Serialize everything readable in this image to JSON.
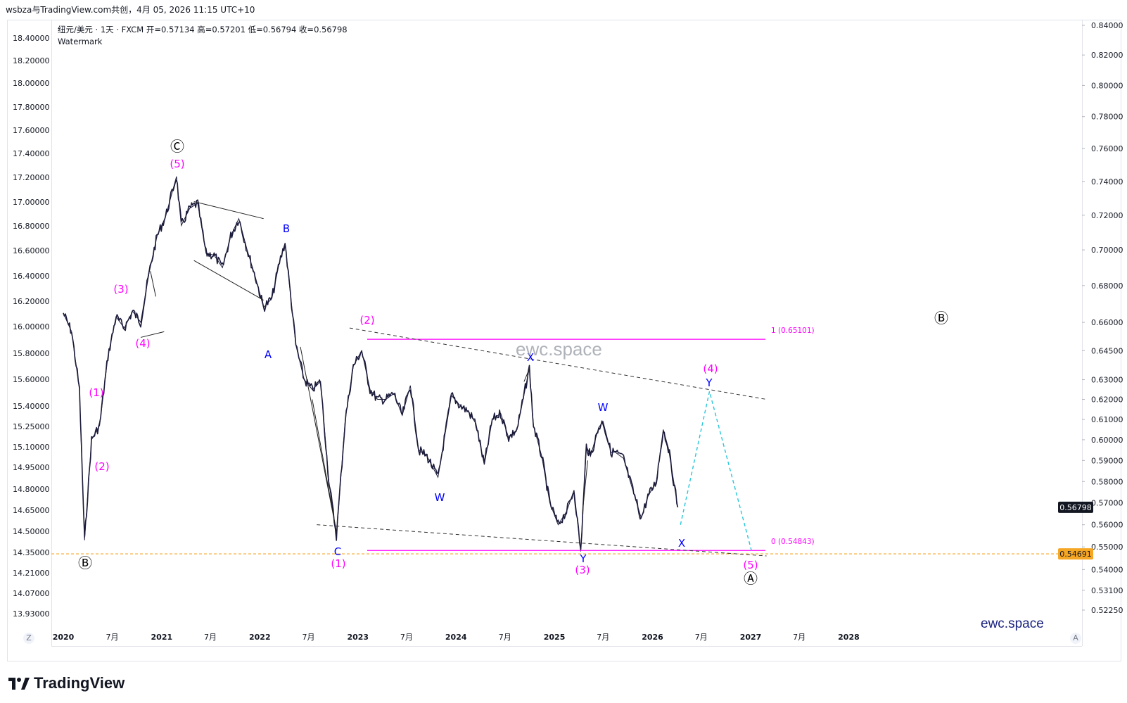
{
  "topbar": {
    "text": "wsbza与TradingView.com共创，4月 05, 2026 11:15 UTC+10"
  },
  "header": {
    "line1": "纽元/美元 · 1天 · FXCM  开=0.57134  高=0.57201  低=0.56794  收=0.56798",
    "line2": "Watermark"
  },
  "watermark": "ewc.space",
  "brand": "ewc.space",
  "logo_text": "TradingView",
  "axis_corner_left": "Z",
  "axis_corner_right": "A",
  "price_labels": {
    "last": "0.56798",
    "level": "0.54691"
  },
  "colors": {
    "candle": "#1a1a3a",
    "magenta": "#ff00ff",
    "blue": "#0000ff",
    "cyan": "#26c6da",
    "orange": "#f5a623",
    "black": "#000000"
  },
  "chart_data": {
    "type": "line",
    "x_tick_labels": [
      "2020",
      "7月",
      "2021",
      "7月",
      "2022",
      "7月",
      "2023",
      "7月",
      "2024",
      "7月",
      "2025",
      "7月",
      "2026",
      "7月",
      "2027",
      "7月",
      "2028"
    ],
    "left_axis_ticks": [
      "18.40000",
      "18.20000",
      "18.00000",
      "17.80000",
      "17.60000",
      "17.40000",
      "17.20000",
      "17.00000",
      "16.80000",
      "16.60000",
      "16.40000",
      "16.20000",
      "16.00000",
      "15.80000",
      "15.60000",
      "15.40000",
      "15.25000",
      "15.10000",
      "14.95000",
      "14.80000",
      "14.65000",
      "14.50000",
      "14.35000",
      "14.21000",
      "14.07000",
      "13.93000"
    ],
    "right_axis_ticks": [
      "0.84000",
      "0.82000",
      "0.80000",
      "0.78000",
      "0.76000",
      "0.74000",
      "0.72000",
      "0.70000",
      "0.68000",
      "0.66000",
      "0.64500",
      "0.63000",
      "0.62000",
      "0.61000",
      "0.60000",
      "0.59000",
      "0.58000",
      "0.57000",
      "0.56000",
      "0.55000",
      "0.54000",
      "0.53100",
      "0.52250"
    ],
    "series": [
      {
        "values": [
          [
            "2020-01-01",
            0.665
          ],
          [
            "2020-02-01",
            0.655
          ],
          [
            "2020-03-01",
            0.625
          ],
          [
            "2020-03-20",
            0.553
          ],
          [
            "2020-04-15",
            0.6
          ],
          [
            "2020-05-15",
            0.607
          ],
          [
            "2020-06-15",
            0.642
          ],
          [
            "2020-07-15",
            0.663
          ],
          [
            "2020-08-15",
            0.657
          ],
          [
            "2020-09-15",
            0.666
          ],
          [
            "2020-10-15",
            0.66
          ],
          [
            "2020-11-15",
            0.687
          ],
          [
            "2020-12-15",
            0.708
          ],
          [
            "2021-01-15",
            0.719
          ],
          [
            "2021-02-25",
            0.743
          ],
          [
            "2021-03-15",
            0.714
          ],
          [
            "2021-04-15",
            0.724
          ],
          [
            "2021-05-15",
            0.727
          ],
          [
            "2021-06-15",
            0.698
          ],
          [
            "2021-07-15",
            0.697
          ],
          [
            "2021-08-15",
            0.69
          ],
          [
            "2021-09-15",
            0.708
          ],
          [
            "2021-10-15",
            0.718
          ],
          [
            "2021-11-15",
            0.7
          ],
          [
            "2021-12-15",
            0.685
          ],
          [
            "2022-01-15",
            0.668
          ],
          [
            "2022-02-15",
            0.673
          ],
          [
            "2022-03-15",
            0.693
          ],
          [
            "2022-04-05",
            0.704
          ],
          [
            "2022-05-15",
            0.648
          ],
          [
            "2022-06-15",
            0.63
          ],
          [
            "2022-07-15",
            0.625
          ],
          [
            "2022-08-15",
            0.629
          ],
          [
            "2022-09-15",
            0.58
          ],
          [
            "2022-10-13",
            0.555
          ],
          [
            "2022-11-15",
            0.61
          ],
          [
            "2022-12-15",
            0.637
          ],
          [
            "2023-01-15",
            0.645
          ],
          [
            "2023-02-15",
            0.625
          ],
          [
            "2023-03-15",
            0.62
          ],
          [
            "2023-04-15",
            0.62
          ],
          [
            "2023-05-15",
            0.623
          ],
          [
            "2023-06-15",
            0.612
          ],
          [
            "2023-07-15",
            0.627
          ],
          [
            "2023-08-15",
            0.595
          ],
          [
            "2023-09-15",
            0.592
          ],
          [
            "2023-10-26",
            0.582
          ],
          [
            "2023-12-15",
            0.622
          ],
          [
            "2024-01-15",
            0.617
          ],
          [
            "2024-02-15",
            0.614
          ],
          [
            "2024-03-15",
            0.608
          ],
          [
            "2024-04-15",
            0.588
          ],
          [
            "2024-05-15",
            0.61
          ],
          [
            "2024-06-15",
            0.613
          ],
          [
            "2024-07-15",
            0.601
          ],
          [
            "2024-08-15",
            0.605
          ],
          [
            "2024-09-30",
            0.636
          ],
          [
            "2024-10-15",
            0.607
          ],
          [
            "2024-11-15",
            0.592
          ],
          [
            "2024-12-15",
            0.57
          ],
          [
            "2025-01-15",
            0.56
          ],
          [
            "2025-02-15",
            0.566
          ],
          [
            "2025-03-15",
            0.576
          ],
          [
            "2025-04-09",
            0.548
          ],
          [
            "2025-04-30",
            0.597
          ],
          [
            "2025-05-15",
            0.592
          ],
          [
            "2025-06-15",
            0.606
          ],
          [
            "2025-07-01",
            0.609
          ],
          [
            "2025-07-30",
            0.594
          ],
          [
            "2025-08-15",
            0.594
          ],
          [
            "2025-09-15",
            0.591
          ],
          [
            "2025-10-15",
            0.578
          ],
          [
            "2025-11-20",
            0.563
          ],
          [
            "2025-12-15",
            0.573
          ],
          [
            "2026-01-15",
            0.58
          ],
          [
            "2026-02-10",
            0.605
          ],
          [
            "2026-03-01",
            0.596
          ],
          [
            "2026-04-05",
            0.568
          ]
        ]
      }
    ],
    "annotations": [
      {
        "text": "Ⓑ",
        "color": "black"
      },
      {
        "text": "(1)",
        "color": "magenta"
      },
      {
        "text": "(2)",
        "color": "magenta"
      },
      {
        "text": "(3)",
        "color": "magenta"
      },
      {
        "text": "(4)",
        "color": "magenta"
      },
      {
        "text": "(5)",
        "color": "magenta"
      },
      {
        "text": "Ⓒ",
        "color": "black"
      },
      {
        "text": "A",
        "color": "blue"
      },
      {
        "text": "B",
        "color": "blue"
      },
      {
        "text": "C",
        "color": "blue"
      },
      {
        "text": "(1)",
        "color": "magenta"
      },
      {
        "text": "(2)",
        "color": "magenta"
      },
      {
        "text": "W",
        "color": "blue"
      },
      {
        "text": "X",
        "color": "blue"
      },
      {
        "text": "W",
        "color": "blue"
      },
      {
        "text": "Y",
        "color": "blue"
      },
      {
        "text": "(3)",
        "color": "magenta"
      },
      {
        "text": "X",
        "color": "blue"
      },
      {
        "text": "Y",
        "color": "blue"
      },
      {
        "text": "(4)",
        "color": "magenta"
      },
      {
        "text": "(5)",
        "color": "magenta"
      },
      {
        "text": "Ⓐ",
        "color": "black"
      },
      {
        "text": "Ⓑ",
        "color": "black"
      }
    ],
    "fib_levels": [
      {
        "label": "1 (0.65101)",
        "value": 0.65101
      },
      {
        "label": "0 (0.54843)",
        "value": 0.54843
      }
    ],
    "horizontal_line": {
      "value": 0.54691,
      "style": "dashed",
      "color": "orange"
    },
    "projection": [
      [
        "2026-04-15",
        0.56
      ],
      [
        "2026-08-01",
        0.624
      ],
      [
        "2027-01-05",
        0.548
      ]
    ],
    "trendlines": [
      {
        "from": [
          "2022-12-01",
          0.657
        ],
        "to": [
          "2027-03-01",
          0.62
        ],
        "style": "dashed"
      },
      {
        "from": [
          "2022-08-01",
          0.56
        ],
        "to": [
          "2027-03-01",
          0.546
        ],
        "style": "dashed"
      }
    ]
  }
}
